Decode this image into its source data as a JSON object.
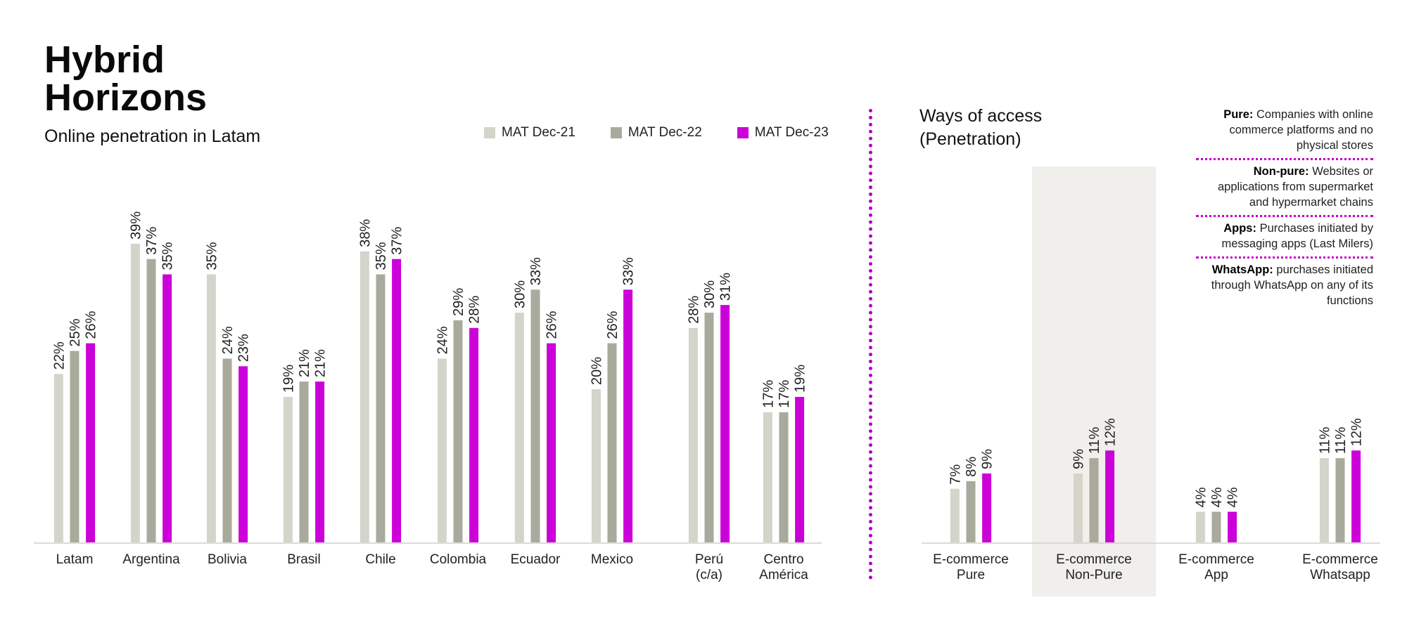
{
  "header": {
    "title": "Hybrid\nHorizons",
    "subtitle": "Online penetration in Latam"
  },
  "legend": {
    "items": [
      {
        "label": "MAT Dec-21",
        "color": "#d4d4cb"
      },
      {
        "label": "MAT Dec-22",
        "color": "#aaaa9c"
      },
      {
        "label": "MAT Dec-23",
        "color": "#cc00d9"
      }
    ]
  },
  "right_panel": {
    "title": "Ways of access\n(Penetration)",
    "notes": [
      {
        "term": "Pure:",
        "text": "Companies with online commerce platforms and no physical stores"
      },
      {
        "term": "Non-pure:",
        "text": "Websites or applications from supermarket and hypermarket chains"
      },
      {
        "term": "Apps:",
        "text": "Purchases initiated by messaging apps (Last Milers)"
      },
      {
        "term": "WhatsApp:",
        "text": "purchases initiated through WhatsApp on any of its functions"
      }
    ],
    "highlight_color": "#f0efec"
  },
  "chart_data": [
    {
      "type": "bar",
      "title": "Online penetration in Latam",
      "categories": [
        "Latam",
        "Argentina",
        "Bolivia",
        "Brasil",
        "Chile",
        "Colombia",
        "Ecuador",
        "Mexico",
        "Perú\n(c/a)",
        "Centro\nAmérica"
      ],
      "series": [
        {
          "name": "MAT Dec-21",
          "color": "#d4d4cb",
          "values": [
            22,
            39,
            35,
            19,
            38,
            24,
            30,
            20,
            28,
            17
          ]
        },
        {
          "name": "MAT Dec-22",
          "color": "#aaaa9c",
          "values": [
            25,
            37,
            24,
            21,
            35,
            29,
            33,
            26,
            30,
            17
          ]
        },
        {
          "name": "MAT Dec-23",
          "color": "#cc00d9",
          "values": [
            26,
            35,
            23,
            21,
            37,
            28,
            26,
            33,
            31,
            19
          ]
        }
      ],
      "value_suffix": "%",
      "ylim": [
        0,
        40
      ],
      "grid": false,
      "legend": "top-right"
    },
    {
      "type": "bar",
      "title": "Ways of access\n(Penetration)",
      "categories": [
        "E-commerce\nPure",
        "E-commerce\nNon-Pure",
        "E-commerce\nApp",
        "E-commerce\nWhatsapp"
      ],
      "highlighted_category": "E-commerce\nNon-Pure",
      "series": [
        {
          "name": "MAT Dec-21",
          "color": "#d4d4cb",
          "values": [
            7,
            9,
            4,
            11
          ]
        },
        {
          "name": "MAT Dec-22",
          "color": "#aaaa9c",
          "values": [
            8,
            11,
            4,
            11
          ]
        },
        {
          "name": "MAT Dec-23",
          "color": "#cc00d9",
          "values": [
            9,
            12,
            4,
            12
          ]
        }
      ],
      "value_suffix": "%",
      "grid": false
    }
  ]
}
